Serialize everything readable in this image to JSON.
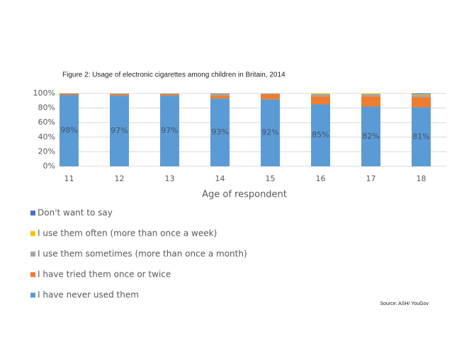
{
  "chart_data": {
    "type": "stacked_bar",
    "title": "Figure 2: Usage of electronic cigarettes among children in Britain, 2014",
    "x_label": "Age of respondent",
    "source": "Source: ASH/ YouGov",
    "categories": [
      "11",
      "12",
      "13",
      "14",
      "15",
      "16",
      "17",
      "18"
    ],
    "series": [
      {
        "name": "I have never used them",
        "color": "#5b9bd5",
        "values": [
          98,
          97,
          97,
          93,
          92,
          85,
          82,
          81
        ],
        "value_labels": [
          "98%",
          "97%",
          "97%",
          "93%",
          "92%",
          "85%",
          "82%",
          "81%"
        ]
      },
      {
        "name": "I have tried them once or twice",
        "color": "#ed7d31",
        "values": [
          2,
          2,
          2,
          4,
          7,
          11,
          14,
          14
        ]
      },
      {
        "name": "I use them sometimes (more than once a month)",
        "color": "#a5a5a5",
        "values": [
          0,
          1,
          1,
          2,
          1,
          3,
          3,
          3
        ]
      },
      {
        "name": "I use them often (more than once a week)",
        "color": "#ffc000",
        "values": [
          0,
          0,
          0,
          0.5,
          0,
          1,
          1,
          1
        ]
      },
      {
        "name": "Don't want to say",
        "color": "#4472c4",
        "values": [
          0,
          0,
          0,
          0.5,
          0,
          0,
          0,
          1
        ]
      }
    ],
    "ylim": [
      0,
      100
    ],
    "yticks": [
      {
        "value": 0,
        "label": "0%"
      },
      {
        "value": 20,
        "label": "20%"
      },
      {
        "value": 40,
        "label": "40%"
      },
      {
        "value": 60,
        "label": "60%"
      },
      {
        "value": 80,
        "label": "80%"
      },
      {
        "value": 100,
        "label": "100%"
      }
    ],
    "grid": true
  }
}
